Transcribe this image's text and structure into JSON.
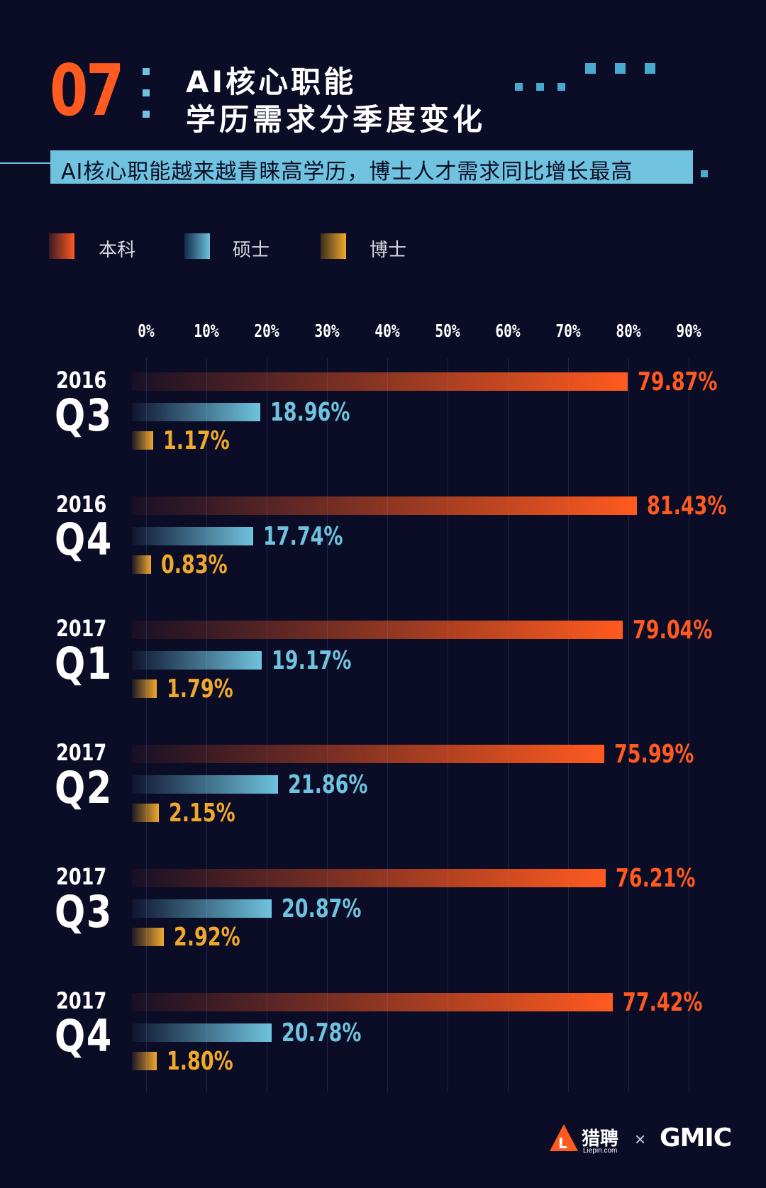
{
  "header": {
    "number": "07",
    "title_line1": "AI核心职能",
    "title_line2": "学历需求分季度变化",
    "subtitle": "AI核心职能越来越青睐高学历，博士人才需求同比增长最高"
  },
  "colors": {
    "background": "#0b0c26",
    "accent_orange": "#ff5a1f",
    "accent_blue": "#6fc3de",
    "accent_gold": "#f0a92c"
  },
  "chart_data": {
    "type": "bar",
    "orientation": "horizontal",
    "x_ticks": [
      "0%",
      "10%",
      "20%",
      "30%",
      "40%",
      "50%",
      "60%",
      "70%",
      "80%",
      "90%"
    ],
    "xlim": [
      0,
      90
    ],
    "grid": true,
    "legend_position": "top-left",
    "series": [
      {
        "name": "本科",
        "color": "#ff5a1f",
        "values": [
          79.87,
          81.43,
          79.04,
          75.99,
          76.21,
          77.42
        ],
        "labels": [
          "79.87%",
          "81.43%",
          "79.04%",
          "75.99%",
          "76.21%",
          "77.42%"
        ]
      },
      {
        "name": "硕士",
        "color": "#6fc3de",
        "values": [
          18.96,
          17.74,
          19.17,
          21.86,
          20.87,
          20.78
        ],
        "labels": [
          "18.96%",
          "17.74%",
          "19.17%",
          "21.86%",
          "20.87%",
          "20.78%"
        ]
      },
      {
        "name": "博士",
        "color": "#f0a92c",
        "values": [
          1.17,
          0.83,
          1.79,
          2.15,
          2.92,
          1.8
        ],
        "labels": [
          "1.17%",
          "0.83%",
          "1.79%",
          "2.15%",
          "2.92%",
          "1.80%"
        ]
      }
    ],
    "categories": [
      {
        "year": "2016",
        "quarter": "Q3"
      },
      {
        "year": "2016",
        "quarter": "Q4"
      },
      {
        "year": "2017",
        "quarter": "Q1"
      },
      {
        "year": "2017",
        "quarter": "Q2"
      },
      {
        "year": "2017",
        "quarter": "Q3"
      },
      {
        "year": "2017",
        "quarter": "Q4"
      }
    ]
  },
  "footer": {
    "logo_cn": "猎聘",
    "logo_en": "Liepin.com",
    "times": "×",
    "partner": "GMIC"
  }
}
